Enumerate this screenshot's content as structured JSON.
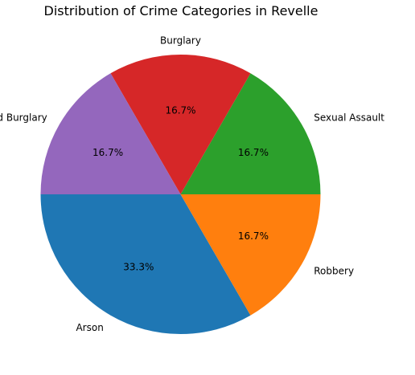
{
  "chart_data": {
    "type": "pie",
    "title": "Distribution of Crime Categories in Revelle",
    "start_angle": 180,
    "direction": "counterclockwise",
    "slices": [
      {
        "label": "Arson",
        "value": 2,
        "percent_label": "33.3%",
        "color": "#1f77b4"
      },
      {
        "label": "Robbery",
        "value": 1,
        "percent_label": "16.7%",
        "color": "#ff7f0e"
      },
      {
        "label": "Sexual Assault",
        "value": 1,
        "percent_label": "16.7%",
        "color": "#2ca02c"
      },
      {
        "label": "Burglary",
        "value": 1,
        "percent_label": "16.7%",
        "color": "#d62728"
      },
      {
        "label": "Attempted Burglary",
        "value": 1,
        "percent_label": "16.7%",
        "color": "#9467bd"
      }
    ]
  }
}
